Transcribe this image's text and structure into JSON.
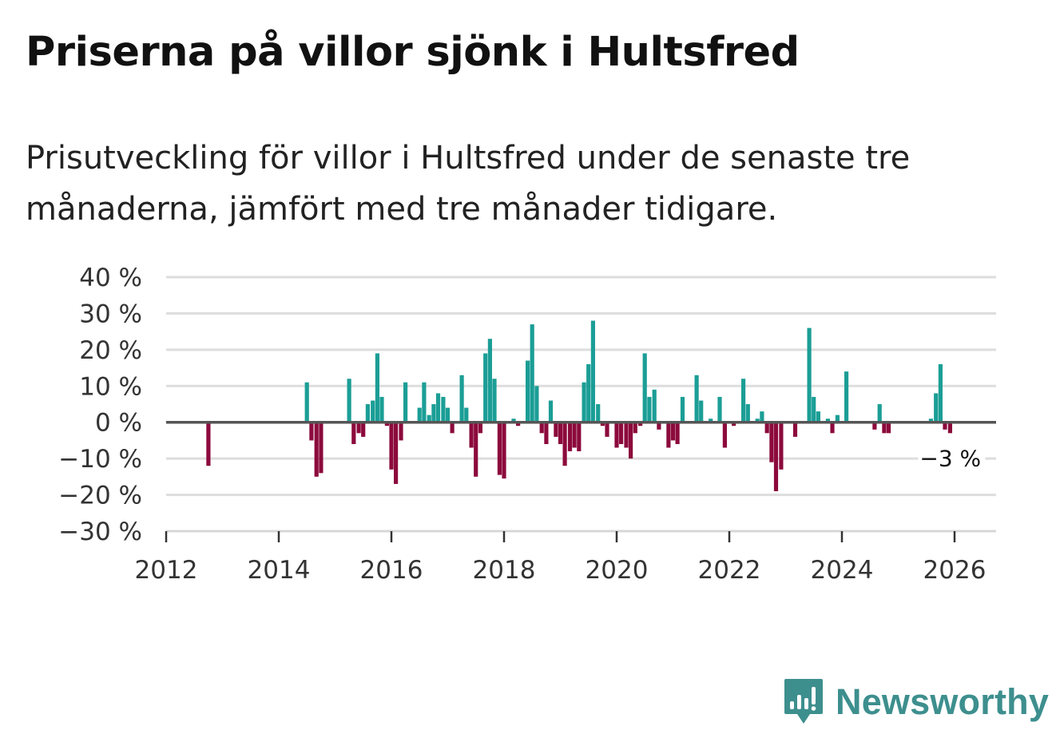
{
  "title": "Priserna på villor sjönk i Hultsfred",
  "subtitle": "Prisutveckling för villor i Hultsfred under de senaste tre månaderna, jämfört med tre månader tidigare.",
  "brand": "Newsworthy",
  "colors": {
    "positive": "#1b9e96",
    "negative": "#8c0a3c",
    "grid": "#dddddd",
    "zero": "#555555",
    "brand": "#3d8f8e"
  },
  "chart_data": {
    "type": "bar",
    "title": "Priserna på villor sjönk i Hultsfred",
    "subtitle": "Prisutveckling för villor i Hultsfred under de senaste tre månaderna, jämfört med tre månader tidigare.",
    "xlabel": "",
    "ylabel": "",
    "unit": "%",
    "grid": true,
    "xlim": [
      2012,
      2026.7
    ],
    "ylim": [
      -30,
      40
    ],
    "y_ticks": [
      40,
      30,
      20,
      10,
      0,
      -10,
      -20,
      -30
    ],
    "y_tick_labels": [
      "40 %",
      "30 %",
      "20 %",
      "10 %",
      "0 %",
      "−10 %",
      "−20 %",
      "−30 %"
    ],
    "x_ticks": [
      2012,
      2014,
      2016,
      2018,
      2020,
      2022,
      2024,
      2026
    ],
    "x_tick_labels": [
      "2012",
      "2014",
      "2016",
      "2018",
      "2020",
      "2022",
      "2024",
      "2026"
    ],
    "annotation": {
      "text": "−3 %",
      "x": 2025.92,
      "y": -3
    },
    "points": [
      [
        2012.75,
        -12
      ],
      [
        2014.5,
        11
      ],
      [
        2014.58,
        -5
      ],
      [
        2014.67,
        -15
      ],
      [
        2014.75,
        -14
      ],
      [
        2015.25,
        12
      ],
      [
        2015.33,
        -6
      ],
      [
        2015.42,
        -3
      ],
      [
        2015.5,
        -4
      ],
      [
        2015.58,
        5
      ],
      [
        2015.67,
        6
      ],
      [
        2015.75,
        19
      ],
      [
        2015.83,
        7
      ],
      [
        2015.92,
        -1
      ],
      [
        2016.0,
        -13
      ],
      [
        2016.08,
        -17
      ],
      [
        2016.17,
        -5
      ],
      [
        2016.25,
        11
      ],
      [
        2016.5,
        4
      ],
      [
        2016.58,
        11
      ],
      [
        2016.67,
        2
      ],
      [
        2016.75,
        5
      ],
      [
        2016.83,
        8
      ],
      [
        2016.92,
        7
      ],
      [
        2017.0,
        4
      ],
      [
        2017.08,
        -3
      ],
      [
        2017.25,
        13
      ],
      [
        2017.33,
        4
      ],
      [
        2017.42,
        -7
      ],
      [
        2017.5,
        -15
      ],
      [
        2017.58,
        -3
      ],
      [
        2017.67,
        19
      ],
      [
        2017.75,
        23
      ],
      [
        2017.83,
        12
      ],
      [
        2017.92,
        -14.5
      ],
      [
        2018.0,
        -15.5
      ],
      [
        2018.17,
        1
      ],
      [
        2018.25,
        -1
      ],
      [
        2018.42,
        17
      ],
      [
        2018.5,
        27
      ],
      [
        2018.58,
        10
      ],
      [
        2018.67,
        -3
      ],
      [
        2018.75,
        -6
      ],
      [
        2018.83,
        6
      ],
      [
        2018.92,
        -4
      ],
      [
        2019.0,
        -6
      ],
      [
        2019.08,
        -12
      ],
      [
        2019.17,
        -8
      ],
      [
        2019.25,
        -7
      ],
      [
        2019.33,
        -8
      ],
      [
        2019.42,
        11
      ],
      [
        2019.5,
        16
      ],
      [
        2019.58,
        28
      ],
      [
        2019.67,
        5
      ],
      [
        2019.75,
        -1
      ],
      [
        2019.83,
        -4
      ],
      [
        2020.0,
        -7
      ],
      [
        2020.08,
        -6
      ],
      [
        2020.17,
        -7
      ],
      [
        2020.25,
        -10
      ],
      [
        2020.33,
        -3
      ],
      [
        2020.42,
        -1
      ],
      [
        2020.5,
        19
      ],
      [
        2020.58,
        7
      ],
      [
        2020.67,
        9
      ],
      [
        2020.75,
        -2
      ],
      [
        2020.92,
        -7
      ],
      [
        2021.0,
        -5
      ],
      [
        2021.08,
        -6
      ],
      [
        2021.17,
        7
      ],
      [
        2021.42,
        13
      ],
      [
        2021.5,
        6
      ],
      [
        2021.67,
        1
      ],
      [
        2021.83,
        7
      ],
      [
        2021.92,
        -7
      ],
      [
        2022.08,
        -1
      ],
      [
        2022.25,
        12
      ],
      [
        2022.33,
        5
      ],
      [
        2022.5,
        1
      ],
      [
        2022.58,
        3
      ],
      [
        2022.67,
        -3
      ],
      [
        2022.75,
        -11
      ],
      [
        2022.83,
        -19
      ],
      [
        2022.92,
        -13
      ],
      [
        2023.17,
        -4
      ],
      [
        2023.42,
        26
      ],
      [
        2023.5,
        7
      ],
      [
        2023.58,
        3
      ],
      [
        2023.75,
        1
      ],
      [
        2023.83,
        -3
      ],
      [
        2023.92,
        2
      ],
      [
        2024.08,
        14
      ],
      [
        2024.58,
        -2
      ],
      [
        2024.67,
        5
      ],
      [
        2024.75,
        -3
      ],
      [
        2024.83,
        -3
      ],
      [
        2025.58,
        1
      ],
      [
        2025.67,
        8
      ],
      [
        2025.75,
        16
      ],
      [
        2025.83,
        -2
      ],
      [
        2025.92,
        -3
      ]
    ]
  }
}
